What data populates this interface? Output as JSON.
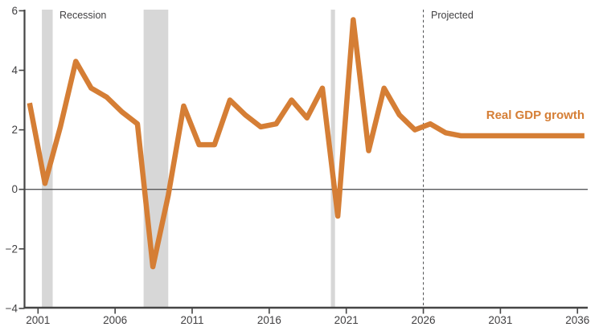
{
  "chart_data": {
    "type": "line",
    "series_label": "Real GDP growth",
    "units": "percent",
    "x": [
      2000,
      2001,
      2002,
      2003,
      2004,
      2005,
      2006,
      2007,
      2008,
      2009,
      2010,
      2011,
      2012,
      2013,
      2014,
      2015,
      2016,
      2017,
      2018,
      2019,
      2020,
      2021,
      2022,
      2023,
      2024,
      2025,
      2026,
      2027,
      2028,
      2029,
      2030,
      2031,
      2032,
      2033,
      2034,
      2035,
      2036
    ],
    "values": [
      2.9,
      0.2,
      2.1,
      4.3,
      3.4,
      3.1,
      2.6,
      2.2,
      -2.6,
      -0.2,
      2.8,
      1.5,
      1.5,
      3.0,
      2.5,
      2.1,
      2.2,
      3.0,
      2.4,
      3.4,
      -0.9,
      5.7,
      1.3,
      3.4,
      2.5,
      2.0,
      2.2,
      1.9,
      1.8,
      1.8,
      1.8,
      1.8,
      1.8,
      1.8,
      1.8,
      1.8,
      1.8
    ],
    "ylim": [
      -4,
      6
    ],
    "y_ticks": [
      6,
      4,
      2,
      0,
      -2,
      -4
    ],
    "x_ticks": [
      2001,
      2006,
      2011,
      2016,
      2021,
      2026,
      2031,
      2036
    ],
    "recession_bands": [
      [
        2001.25,
        2001.95
      ],
      [
        2007.85,
        2009.45
      ],
      [
        2020.0,
        2020.27
      ]
    ],
    "projection_start": 2026,
    "annotations": {
      "recession_label": "Recession",
      "projected_label": "Projected"
    },
    "legend_position": "right-inline",
    "grid": false,
    "zero_line": true,
    "point_offset_years": 0.45,
    "colors": {
      "line": "#D57E35",
      "band": "#D7D7D7",
      "axis": "#454545",
      "tick_text": "#414042",
      "zero_line": "#58595B",
      "dashed_line": "#58595B",
      "label_text": "#414042"
    }
  }
}
